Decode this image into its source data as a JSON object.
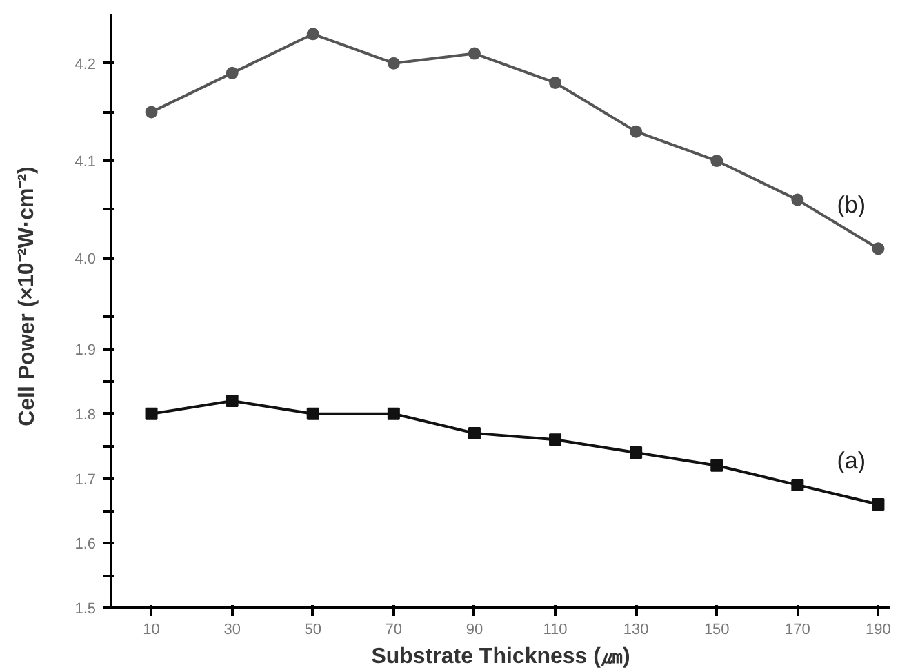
{
  "chart_data": [
    {
      "type": "line",
      "ylabel": "Cell Power (×10⁻²W·cm⁻²)",
      "x": [
        10,
        30,
        50,
        70,
        90,
        110,
        130,
        150,
        170,
        190
      ],
      "ylim": [
        3.96,
        4.25
      ],
      "yticks": [
        {
          "value": 4.0,
          "label": "4.0"
        },
        {
          "value": 4.05,
          "label": null
        },
        4.1,
        {
          "value": 4.15,
          "label": null
        },
        4.2
      ],
      "tick_labels": "y",
      "marker": "circle",
      "line_style": "solid",
      "grid": false,
      "series": [
        {
          "name": "(b)",
          "color": "#555555",
          "values": [
            4.15,
            4.19,
            4.23,
            4.2,
            4.21,
            4.18,
            4.13,
            4.1,
            4.06,
            4.01
          ]
        }
      ]
    },
    {
      "type": "line",
      "xlabel": "Substrate Thickness (㎛)",
      "x": [
        10,
        30,
        50,
        70,
        90,
        110,
        130,
        150,
        170,
        190
      ],
      "xlim": [
        0,
        193
      ],
      "ylim": [
        1.5,
        1.98
      ],
      "xticks": [
        10,
        30,
        50,
        70,
        90,
        110,
        130,
        150,
        170,
        190
      ],
      "yticks": [
        1.5,
        {
          "value": 1.55,
          "label": null
        },
        1.6,
        {
          "value": 1.65,
          "label": null
        },
        1.7,
        {
          "value": 1.75,
          "label": null
        },
        1.8,
        {
          "value": 1.85,
          "label": null
        },
        1.9,
        {
          "value": 1.95,
          "label": null
        }
      ],
      "marker": "square",
      "line_style": "solid",
      "grid": false,
      "series": [
        {
          "name": "(a)",
          "color": "#111111",
          "values": [
            1.8,
            1.82,
            1.8,
            1.8,
            1.77,
            1.76,
            1.74,
            1.72,
            1.69,
            1.66
          ]
        }
      ]
    }
  ]
}
